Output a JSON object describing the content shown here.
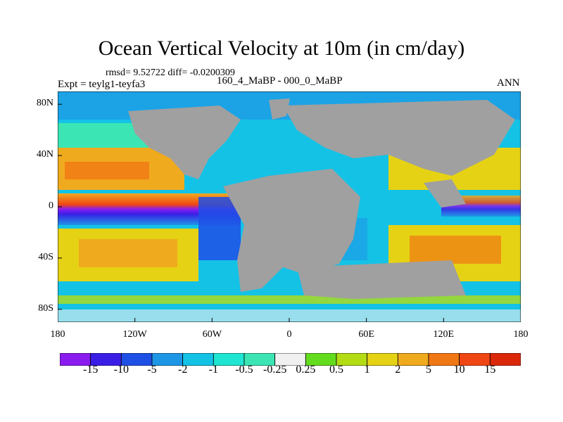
{
  "title": "Ocean Vertical Velocity at 10m (in cm/day)",
  "stats": "rmsd= 9.52722 diff= -0.0200309",
  "experiment": "Expt = teylg1-teyfa3",
  "difference_label": "160_4_MaBP - 000_0_MaBP",
  "season": "ANN",
  "y_ticks": [
    {
      "label": "80N",
      "lat": 80
    },
    {
      "label": "40N",
      "lat": 40
    },
    {
      "label": "0",
      "lat": 0
    },
    {
      "label": "40S",
      "lat": -40
    },
    {
      "label": "80S",
      "lat": -80
    }
  ],
  "x_ticks": [
    {
      "label": "180",
      "lon": -180
    },
    {
      "label": "120W",
      "lon": -120
    },
    {
      "label": "60W",
      "lon": -60
    },
    {
      "label": "0",
      "lon": 0
    },
    {
      "label": "60E",
      "lon": 60
    },
    {
      "label": "120E",
      "lon": 120
    },
    {
      "label": "180",
      "lon": 180
    }
  ],
  "map_data": {
    "lon_range": [
      -180,
      180
    ],
    "lat_range": [
      -90,
      90
    ],
    "land_color": "#a0a0a0"
  },
  "colorbar": {
    "labels": [
      "-15",
      "-10",
      "-5",
      "-2",
      "-1",
      "-0.5",
      "-0.25",
      "0.25",
      "0.5",
      "1",
      "2",
      "5",
      "10",
      "15"
    ],
    "colors": [
      "#8a1cf0",
      "#3a1ee6",
      "#1e50e6",
      "#1e96e6",
      "#14c2e6",
      "#1ee6d2",
      "#3ce6b4",
      "#f0f0f0",
      "#64dc1e",
      "#b4dc14",
      "#e6d214",
      "#f0aa1e",
      "#f07814",
      "#f04614",
      "#dc280a"
    ]
  }
}
